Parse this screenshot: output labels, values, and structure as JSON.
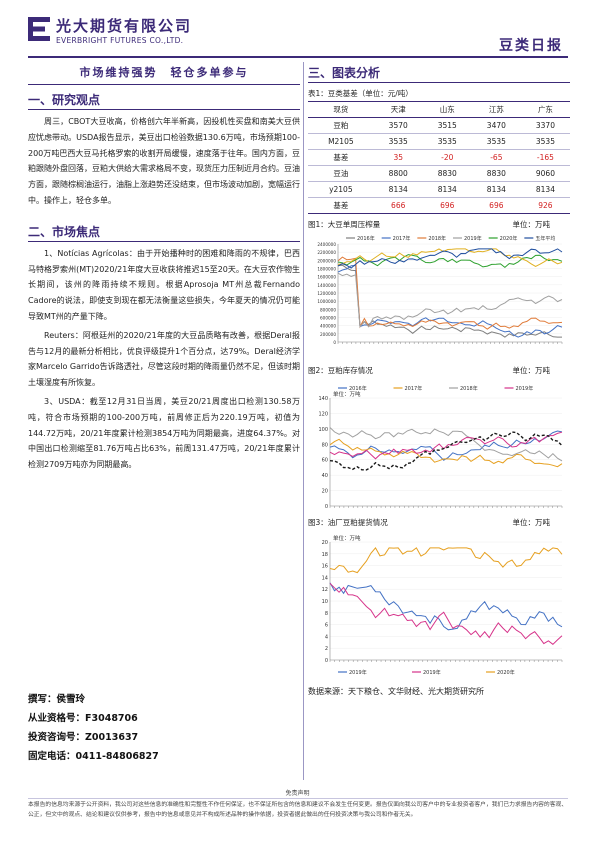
{
  "header": {
    "company_cn": "光大期货有限公司",
    "company_en": "EVERBRIGHT FUTURES CO.,LTD.",
    "report_name": "豆类日报"
  },
  "left": {
    "banner": "市场维持强势　轻仓多单参与",
    "section1_title": "一、研究观点",
    "section1_paragraph": "周三，CBOT大豆收高，价格创六年半新高，因投机性买盘和南美大豆供应忧虑带动。USDA报告显示，美豆出口检验数据130.6万吨，市场预期100-200万吨巴西大豆马托格罗索的收割开局缓慢，速度落于往年。国内方面，豆粕跟随外盘回落，豆粕大供给大需求格局不变，现货压力压制近月合约。豆油方面，跟随棕榈油运行，油脂上涨趋势还没结束，但市场波动加剧，宽幅运行中。操作上，轻仓多单。",
    "section2_title": "二、市场焦点",
    "section2_paragraphs": [
      "1、Notícias Agrícolas：由于开始播种时的困难和降雨的不规律，巴西马特格罗索州(MT)2020/21年度大豆收获将推迟15至20天。在大豆农作物生长期间，该州的降雨持续不规则。根据Aprosoja MT州总裁Fernando Cadore的说法，即使支到现在都无法衡量这些损失，今年夏天的情况仍可能导致MT州的产量下降。",
      "Reuters：阿根廷州的2020/21年度的大豆品质略有改善，根据Deral报告与12月的最新分析相比，优良评级提升1个百分点，达79%。Deral经济学家Marcelo Garrido告诉路透社，尽管这段时期的降雨量仍然不足，但该时期土壤湿度有所恢复。",
      "3、USDA：截至12月31日当周，美豆20/21周度出口检测130.58万吨，符合市场预期的100-200万吨，前周修正后为220.19万吨，初值为144.72万吨，20/21年度累计检测3854万吨为同期最高，进度64.37%。对中国出口检测缩至81.76万吨占比63%，前周131.47万吨，20/21年度累计检测2709万吨亦为同期最高。"
    ],
    "author": "撰写：侯雪玲",
    "qualification": "从业资格号：F3048706",
    "consult": "投资咨询号：Z0013637",
    "phone": "固定电话：0411-84806827"
  },
  "right": {
    "section3_title": "三、图表分析",
    "table_caption": "表1：豆类基差（单位：元/吨）",
    "table": {
      "header": [
        "现货",
        "天津",
        "山东",
        "江苏",
        "广东"
      ],
      "rows": [
        {
          "label": "豆粕",
          "values": [
            "3570",
            "3515",
            "3470",
            "3370"
          ],
          "red": false
        },
        {
          "label": "M2105",
          "values": [
            "3535",
            "3535",
            "3535",
            "3535"
          ],
          "red": false
        },
        {
          "label": "基差",
          "values": [
            "35",
            "-20",
            "-65",
            "-165"
          ],
          "red": true
        },
        {
          "label": "豆油",
          "values": [
            "8800",
            "8830",
            "8830",
            "9060"
          ],
          "red": false
        },
        {
          "label": "y2105",
          "values": [
            "8134",
            "8134",
            "8134",
            "8134"
          ],
          "red": false
        },
        {
          "label": "基差",
          "values": [
            "666",
            "696",
            "696",
            "926"
          ],
          "red": true
        }
      ]
    },
    "fig1_caption": "图1：大豆单周压榨量",
    "fig1_unit": "单位：万吨",
    "fig2_caption": "图2：豆粕库存情况",
    "fig2_unit": "单位：万吨",
    "fig3_caption": "图3：油厂豆粕提货情况",
    "fig3_unit": "单位：万吨",
    "sources": "数据来源：天下粮仓、文华财经、光大期货研究所"
  },
  "chart_data": [
    {
      "type": "line",
      "id": "fig1",
      "ylim": [
        0,
        2400000
      ],
      "yticks": [
        "2400000",
        "2200000",
        "2000000",
        "1800000",
        "1600000",
        "1400000",
        "1200000",
        "1000000",
        "800000",
        "600000",
        "400000",
        "200000",
        "0"
      ],
      "series": [
        {
          "name": "2016年",
          "color": "#7f7f7f"
        },
        {
          "name": "2017年",
          "color": "#4472c4"
        },
        {
          "name": "2018年",
          "color": "#e07b39"
        },
        {
          "name": "2019年",
          "color": "#a0a0a0"
        },
        {
          "name": "2020年",
          "color": "#2ca02c"
        },
        {
          "name": "",
          "color": "#e0b020"
        },
        {
          "name": "五年平均",
          "color": "#1f4e9e"
        }
      ]
    },
    {
      "type": "line",
      "id": "fig2",
      "ylabel": "单位：万吨",
      "ylim": [
        0,
        140
      ],
      "yticks": [
        "140",
        "120",
        "100",
        "80",
        "60",
        "40",
        "20",
        "0"
      ],
      "series": [
        {
          "name": "2016年",
          "color": "#4472c4"
        },
        {
          "name": "2017年",
          "color": "#e6a020"
        },
        {
          "name": "2018年",
          "color": "#a0a0a0"
        },
        {
          "name": "2019年",
          "color": "#d6338a"
        },
        {
          "name": "",
          "color": "#1a1a1a"
        }
      ]
    },
    {
      "type": "line",
      "id": "fig3",
      "ylabel": "单位：万吨",
      "ylim": [
        0,
        20
      ],
      "yticks": [
        "20",
        "18",
        "16",
        "14",
        "12",
        "10",
        "8",
        "6",
        "4",
        "2",
        "0"
      ],
      "series": [
        {
          "name": "2019年",
          "color": "#4472c4"
        },
        {
          "name": "2019年",
          "color": "#d6338a"
        },
        {
          "name": "2020年",
          "color": "#e6a020"
        }
      ]
    }
  ],
  "footer": {
    "title": "免责声明",
    "text": "本报告的信息均来源于公开资料，我公司对这些信息的准确性和完整性不作任何保证，也不保证所包含的信息和建议不会发生任何变更。报告仅面向我公司客户中的专业投资者客户，我们已力求报告内容的客观、公正，但文中的观点、结论和建议仅供参考，报告中的信息或意见并不构成所述品种的操作依据，投资者据此做出的任何投资决策与我公司和作者无关。"
  },
  "colors": {
    "brand": "#3c2a78",
    "negative": "#d21f1f"
  }
}
